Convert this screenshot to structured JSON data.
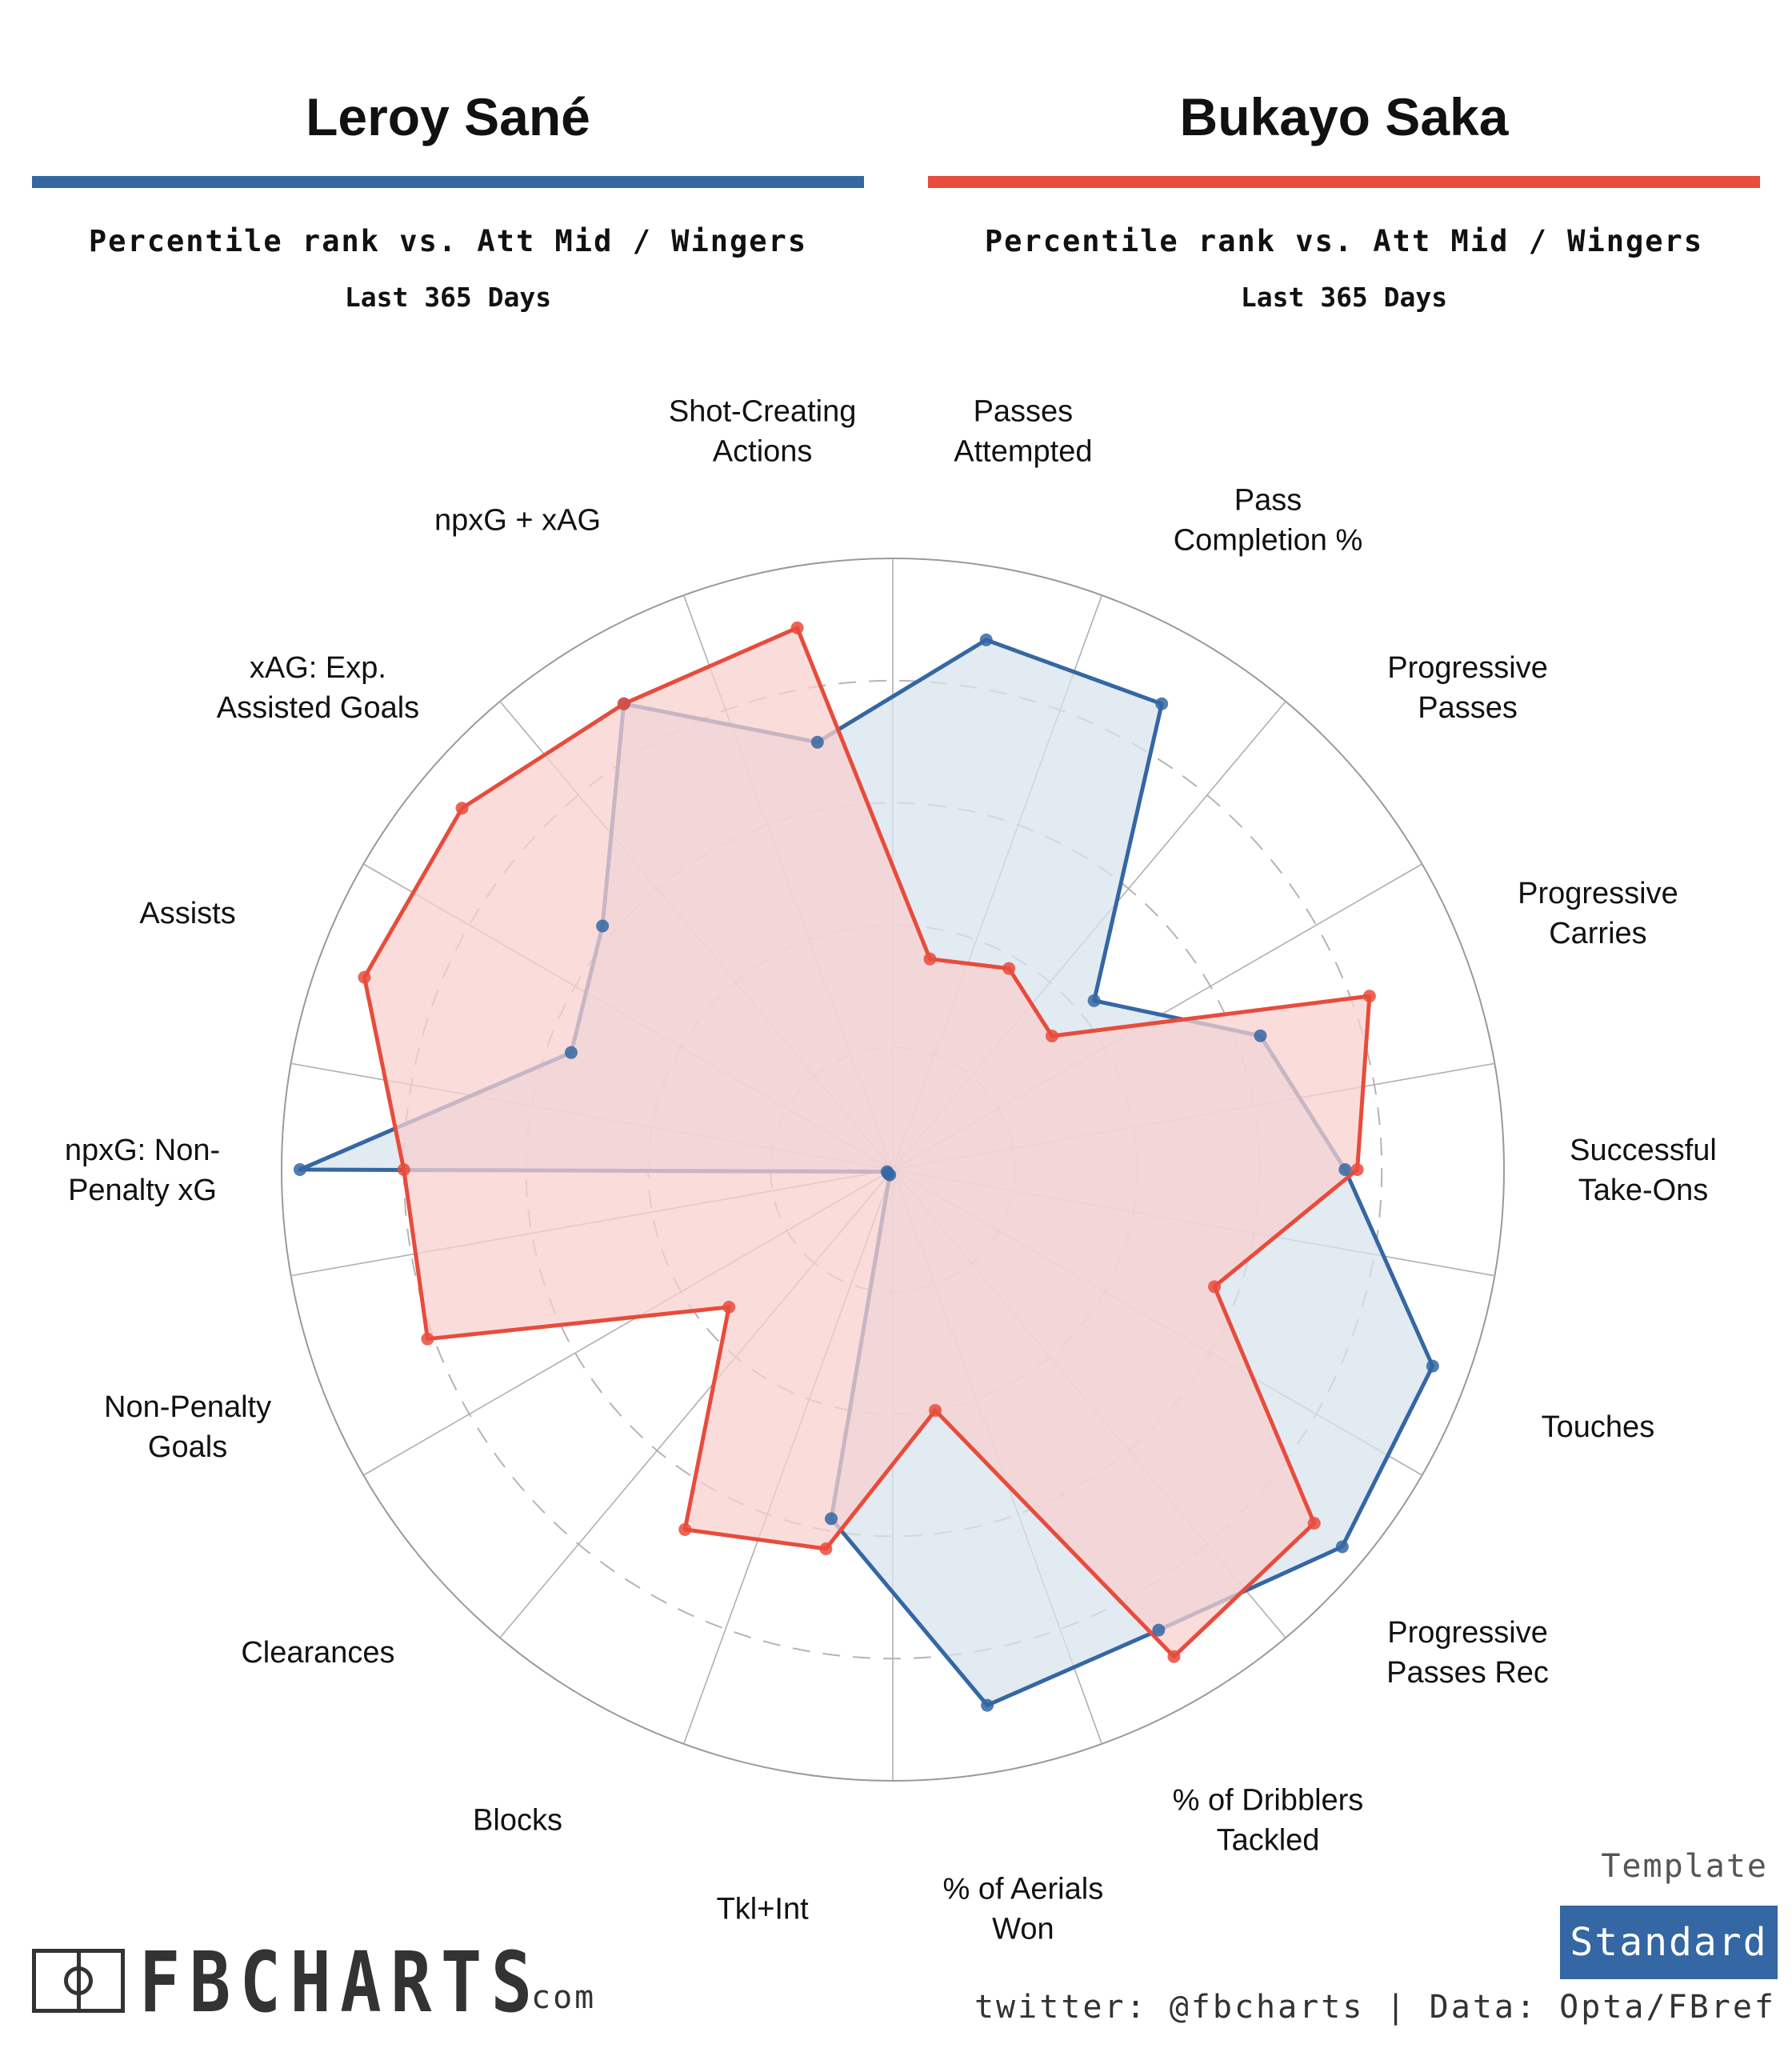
{
  "header": {
    "left": {
      "name": "Leroy Sané",
      "subtitle": "Percentile rank vs. Att Mid / Wingers",
      "period": "Last 365 Days",
      "color": "#3467a3"
    },
    "right": {
      "name": "Bukayo Saka",
      "subtitle": "Percentile rank vs. Att Mid / Wingers",
      "period": "Last 365 Days",
      "color": "#e74c3c"
    }
  },
  "chart_data": {
    "type": "radar",
    "categories": [
      "Passes Attempted",
      "Pass Completion %",
      "Progressive Passes",
      "Progressive Carries",
      "Successful Take-Ons",
      "Touches",
      "Progressive Passes Rec",
      "% of Dribblers Tackled",
      "% of Aerials Won",
      "Tkl+Int",
      "Blocks",
      "Clearances",
      "Non-Penalty Goals",
      "npxG: Non-Penalty xG",
      "Assists",
      "xAG: Exp. Assisted Goals",
      "npxG + xAG",
      "Shot-Creating Actions"
    ],
    "label_lines": [
      [
        "Passes",
        "Attempted"
      ],
      [
        "Pass",
        "Completion %"
      ],
      [
        "Progressive",
        "Passes"
      ],
      [
        "Progressive",
        "Carries"
      ],
      [
        "Successful",
        "Take-Ons"
      ],
      [
        "Touches"
      ],
      [
        "Progressive",
        "Passes Rec"
      ],
      [
        "% of Dribblers",
        "Tackled"
      ],
      [
        "% of Aerials",
        "Won"
      ],
      [
        "Tkl+Int"
      ],
      [
        "Blocks"
      ],
      [
        "Clearances"
      ],
      [
        "Non-Penalty",
        "Goals"
      ],
      [
        "npxG: Non-",
        "Penalty xG"
      ],
      [
        "Assists"
      ],
      [
        "xAG: Exp.",
        "Assisted Goals"
      ],
      [
        "npxG + xAG"
      ],
      [
        "Shot-Creating",
        "Actions"
      ]
    ],
    "series": [
      {
        "name": "Leroy Sané",
        "color": "#3467a3",
        "fill": "#d8e3ee",
        "values": [
          88,
          88,
          43,
          64,
          74,
          94,
          96,
          87,
          89,
          58,
          1,
          1,
          1,
          97,
          56,
          62,
          88,
          71
        ]
      },
      {
        "name": "Bukayo Saka",
        "color": "#e74c3c",
        "fill": "#f8d0cf",
        "values": [
          35,
          38,
          34,
          83,
          76,
          56,
          90,
          92,
          40,
          63,
          68,
          35,
          81,
          80,
          92,
          92,
          88,
          90
        ]
      }
    ],
    "range": [
      0,
      100
    ],
    "gridlines": [
      20,
      40,
      60,
      80,
      100
    ]
  },
  "footer": {
    "template_label": "Template",
    "template_value": "Standard",
    "brand": "FBCHARTS",
    "brand_suffix": ".com",
    "credit": "twitter: @fbcharts | Data: Opta/FBref"
  }
}
